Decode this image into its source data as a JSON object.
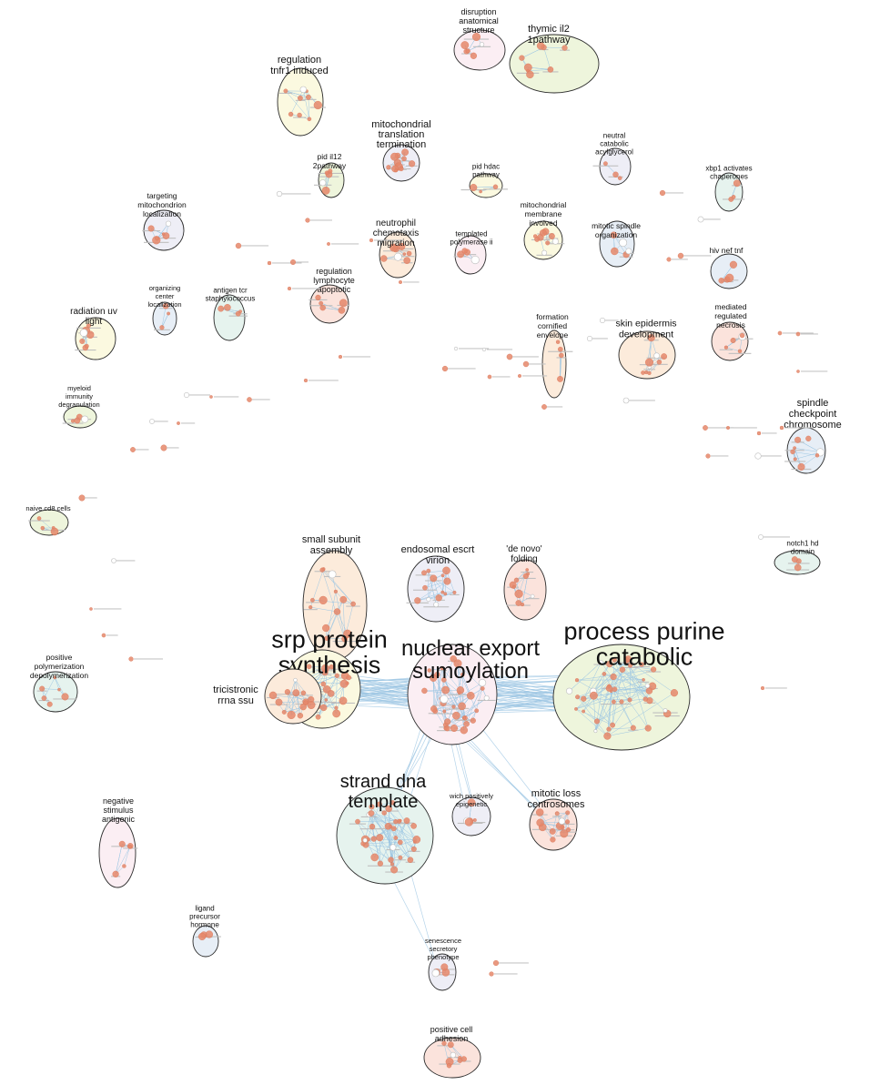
{
  "colors": {
    "node": "#e5876a",
    "edge": "#9cc6e3",
    "outline": "#2b2b2b",
    "fill_yellow": "#fbf9e0",
    "fill_green": "#eef5dc",
    "fill_pink": "#fbeef3",
    "fill_lavender": "#eeeef6",
    "fill_mint": "#e6f3ee",
    "fill_blue": "#e7eef6",
    "fill_peach": "#fcebdb",
    "fill_salmon": "#fbe3dc"
  },
  "clusters": [
    {
      "id": "disruption",
      "lines": [
        "disruption",
        "anatomical",
        "structure"
      ],
      "fill": "pink",
      "nodes": 6
    },
    {
      "id": "thymic",
      "lines": [
        "thymic il2",
        "1pathway"
      ],
      "fill": "green",
      "nodes": 8
    },
    {
      "id": "tnfr1",
      "lines": [
        "regulation",
        "tnfr1 induced"
      ],
      "fill": "yellow",
      "nodes": 9
    },
    {
      "id": "mito-translation",
      "lines": [
        "mitochondrial",
        "translation",
        "termination"
      ],
      "fill": "lavender",
      "nodes": 12
    },
    {
      "id": "il12",
      "lines": [
        "pid il12",
        "2pathway"
      ],
      "fill": "green",
      "nodes": 5
    },
    {
      "id": "hdac",
      "lines": [
        "pid hdac",
        "pathway"
      ],
      "fill": "yellow",
      "nodes": 3
    },
    {
      "id": "acylglycerol",
      "lines": [
        "neutral",
        "catabolic",
        "acylglycerol"
      ],
      "fill": "lavender",
      "nodes": 3
    },
    {
      "id": "xbp1",
      "lines": [
        "xbp1 activates",
        "chaperones"
      ],
      "fill": "mint",
      "nodes": 3
    },
    {
      "id": "targeting",
      "lines": [
        "targeting",
        "mitochondrion",
        "localization"
      ],
      "fill": "lavender",
      "nodes": 6
    },
    {
      "id": "neutrophil",
      "lines": [
        "neutrophil",
        "chemotaxis",
        "migration"
      ],
      "fill": "peach",
      "nodes": 8
    },
    {
      "id": "templated",
      "lines": [
        "templated",
        "polymerase ii"
      ],
      "fill": "pink",
      "nodes": 4
    },
    {
      "id": "mito-membrane",
      "lines": [
        "mitochondrial",
        "membrane",
        "involved"
      ],
      "fill": "yellow",
      "nodes": 9
    },
    {
      "id": "spindle-org",
      "lines": [
        "mitotic spindle",
        "organization"
      ],
      "fill": "blue",
      "nodes": 5
    },
    {
      "id": "hiv",
      "lines": [
        "hiv nef tnf"
      ],
      "fill": "blue",
      "nodes": 4
    },
    {
      "id": "organizing",
      "lines": [
        "organizing",
        "center",
        "localization"
      ],
      "fill": "blue",
      "nodes": 3
    },
    {
      "id": "antigen-tcr",
      "lines": [
        "antigen tcr",
        "staphylococcus"
      ],
      "fill": "mint",
      "nodes": 4
    },
    {
      "id": "lymphocyte",
      "lines": [
        "regulation",
        "lymphocyte",
        "apoptotic"
      ],
      "fill": "salmon",
      "nodes": 5
    },
    {
      "id": "radiation",
      "lines": [
        "radiation uv",
        "light"
      ],
      "fill": "yellow",
      "nodes": 7
    },
    {
      "id": "cornified",
      "lines": [
        "formation",
        "cornified",
        "envelope"
      ],
      "fill": "peach",
      "nodes": 4
    },
    {
      "id": "epidermis",
      "lines": [
        "skin epidermis",
        "development"
      ],
      "fill": "peach",
      "nodes": 9
    },
    {
      "id": "necrosis",
      "lines": [
        "mediated",
        "regulated",
        "necrosis"
      ],
      "fill": "salmon",
      "nodes": 5
    },
    {
      "id": "myeloid",
      "lines": [
        "myeloid",
        "immunity",
        "degranulation"
      ],
      "fill": "green",
      "nodes": 4
    },
    {
      "id": "checkpoint",
      "lines": [
        "spindle",
        "checkpoint",
        "chromosome"
      ],
      "fill": "blue",
      "nodes": 8
    },
    {
      "id": "naive-cd8",
      "lines": [
        "naive cd8 cells"
      ],
      "fill": "green",
      "nodes": 4
    },
    {
      "id": "small-subunit",
      "lines": [
        "small subunit",
        "assembly"
      ],
      "fill": "peach",
      "nodes": 14
    },
    {
      "id": "escrt",
      "lines": [
        "endosomal escrt",
        "virion"
      ],
      "fill": "lavender",
      "nodes": 14
    },
    {
      "id": "de-novo",
      "lines": [
        "'de novo'",
        "folding"
      ],
      "fill": "salmon",
      "nodes": 10
    },
    {
      "id": "notch1",
      "lines": [
        "notch1 hd",
        "domain"
      ],
      "fill": "mint",
      "nodes": 3
    },
    {
      "id": "srp",
      "lines": [
        "srp protein",
        "synthesis"
      ],
      "fill": "yellow",
      "nodes": 34
    },
    {
      "id": "nuclear-export",
      "lines": [
        "nuclear export",
        "sumoylation"
      ],
      "fill": "pink",
      "nodes": 36
    },
    {
      "id": "purine",
      "lines": [
        "process purine",
        "catabolic"
      ],
      "fill": "green",
      "nodes": 42
    },
    {
      "id": "tricistronic",
      "lines": [
        "tricistronic",
        "rrna ssu"
      ],
      "fill": "peach",
      "nodes": 14
    },
    {
      "id": "positive-poly",
      "lines": [
        "positive",
        "polymerization",
        "depolymerization"
      ],
      "fill": "mint",
      "nodes": 6
    },
    {
      "id": "strand-dna",
      "lines": [
        "strand dna",
        "template"
      ],
      "fill": "mint",
      "nodes": 38
    },
    {
      "id": "wich",
      "lines": [
        "wich positively",
        "epigenetic"
      ],
      "fill": "lavender",
      "nodes": 5
    },
    {
      "id": "mitotic-loss",
      "lines": [
        "mitotic loss",
        "centrosomes"
      ],
      "fill": "salmon",
      "nodes": 14
    },
    {
      "id": "negative-stim",
      "lines": [
        "negative",
        "stimulus",
        "antigenic"
      ],
      "fill": "pink",
      "nodes": 5
    },
    {
      "id": "ligand",
      "lines": [
        "ligand",
        "precursor",
        "hormone"
      ],
      "fill": "blue",
      "nodes": 3
    },
    {
      "id": "senescence",
      "lines": [
        "senescence",
        "secretory",
        "phenotype"
      ],
      "fill": "lavender",
      "nodes": 4
    },
    {
      "id": "cell-adhesion",
      "lines": [
        "positive cell",
        "adhesion"
      ],
      "fill": "salmon",
      "nodes": 8
    }
  ]
}
